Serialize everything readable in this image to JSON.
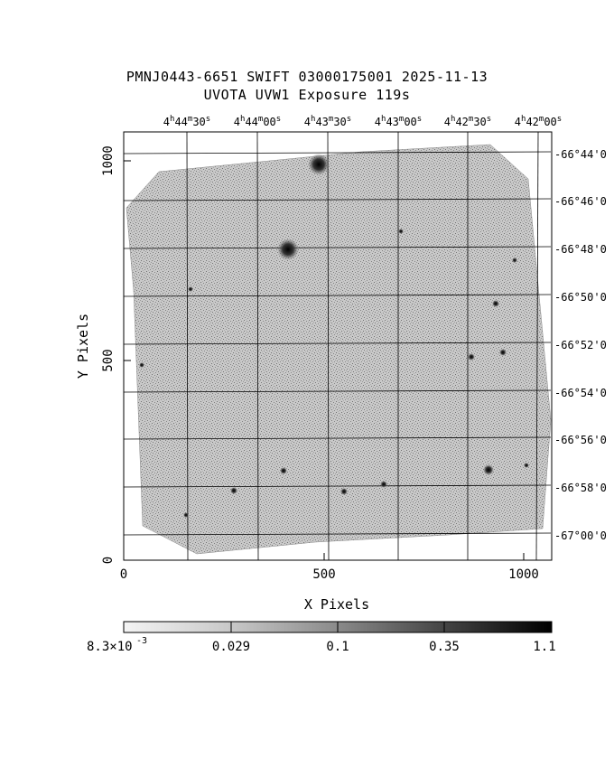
{
  "header": {
    "line1": "PMNJ0443-6651 SWIFT 03000175001 2025-11-13",
    "line2": "UVOTA UVW1 Exposure        119s"
  },
  "axes": {
    "xlabel": "X Pixels",
    "ylabel": "Y Pixels",
    "x_ticks": [
      "0",
      "500",
      "1000"
    ],
    "y_ticks": [
      "0",
      "500",
      "1000"
    ],
    "ra_top_ticks": [
      {
        "h": "4",
        "m": "44",
        "s": "30"
      },
      {
        "h": "4",
        "m": "44",
        "s": "00"
      },
      {
        "h": "4",
        "m": "43",
        "s": "30"
      },
      {
        "h": "4",
        "m": "43",
        "s": "00"
      },
      {
        "h": "4",
        "m": "42",
        "s": "30"
      },
      {
        "h": "4",
        "m": "42",
        "s": "00"
      }
    ],
    "dec_right_ticks": [
      "-66°44'0",
      "-66°46'0",
      "-66°48'0",
      "-66°50'0",
      "-66°52'0",
      "-66°54'0",
      "-66°56'0",
      "-66°58'0",
      "-67°00'0"
    ]
  },
  "colorbar": {
    "labels": [
      "8.3×10",
      "0.029",
      "0.1",
      "0.35",
      "1.1"
    ],
    "exponent": "-3",
    "values": [
      0.0083,
      0.029,
      0.1,
      0.35,
      1.1
    ]
  },
  "image": {
    "description_sources": [
      "bright-source",
      "bright-source",
      "point-source"
    ],
    "field_color": "#9a9a9a"
  }
}
